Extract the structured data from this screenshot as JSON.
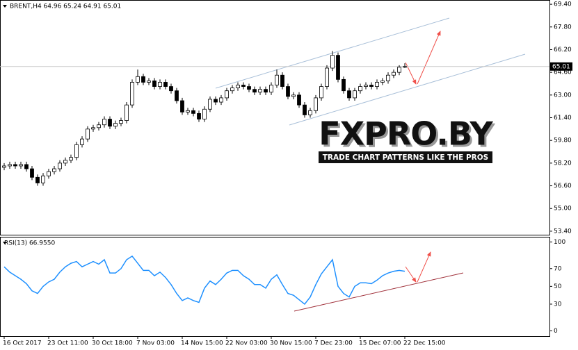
{
  "chart_data": [
    {
      "type": "candlestick",
      "title": "BRENT,H4 64.96 65.24 64.91 65.01",
      "categories": [
        "16 Oct 2017",
        null,
        null,
        null,
        null,
        null,
        null,
        null,
        "23 Oct 11:00",
        null,
        null,
        null,
        null,
        null,
        null,
        null,
        "30 Oct 18:00",
        null,
        null,
        null,
        null,
        null,
        null,
        null,
        "7 Nov 03:00",
        null,
        null,
        null,
        null,
        null,
        null,
        null,
        "14 Nov 15:00",
        null,
        null,
        null,
        null,
        null,
        null,
        null,
        "22 Nov 03:00",
        null,
        null,
        null,
        null,
        null,
        null,
        null,
        "30 Nov 15:00",
        null,
        null,
        null,
        null,
        null,
        null,
        null,
        "7 Dec 23:00",
        null,
        null,
        null,
        null,
        null,
        null,
        null,
        "15 Dec 07:00",
        null,
        null,
        null,
        null,
        null,
        null,
        null,
        "22 Dec 15:00"
      ],
      "open": [
        57.9,
        58.0,
        58.1,
        58.0,
        58.1,
        57.8,
        57.2,
        56.8,
        57.3,
        57.6,
        57.8,
        58.2,
        58.4,
        58.6,
        59.5,
        59.9,
        60.6,
        60.7,
        60.9,
        61.3,
        60.8,
        61.0,
        61.2,
        62.3,
        63.9,
        64.3,
        63.9,
        64.0,
        63.6,
        63.9,
        63.6,
        63.3,
        62.6,
        61.8,
        61.9,
        61.7,
        61.3,
        62.0,
        62.7,
        62.5,
        62.8,
        63.3,
        63.5,
        63.7,
        63.6,
        63.4,
        63.2,
        63.4,
        63.2,
        63.7,
        64.4,
        63.6,
        62.9,
        63.0,
        62.3,
        61.6,
        61.9,
        62.8,
        63.6,
        64.9,
        65.8,
        64.1,
        63.3,
        62.8,
        63.3,
        63.6,
        63.7,
        63.6,
        63.9,
        64.0,
        64.4,
        64.6,
        64.96
      ],
      "high": [
        58.2,
        58.3,
        58.3,
        58.3,
        58.3,
        58.0,
        57.4,
        57.5,
        57.8,
        58.0,
        58.4,
        58.6,
        58.8,
        59.7,
        60.1,
        60.8,
        60.9,
        61.1,
        61.5,
        61.5,
        61.2,
        61.4,
        62.5,
        64.1,
        64.8,
        64.5,
        64.2,
        64.2,
        64.1,
        64.1,
        63.8,
        63.5,
        62.8,
        62.1,
        62.1,
        61.9,
        62.2,
        62.9,
        62.9,
        63.0,
        63.5,
        63.7,
        63.9,
        63.9,
        63.8,
        63.6,
        63.6,
        63.6,
        63.9,
        64.8,
        64.6,
        63.8,
        63.2,
        63.2,
        62.5,
        62.1,
        63.0,
        63.8,
        65.1,
        66.1,
        66.0,
        64.3,
        63.5,
        63.5,
        63.8,
        63.9,
        63.9,
        64.1,
        64.2,
        64.6,
        64.8,
        65.1,
        65.24
      ],
      "low": [
        57.7,
        57.8,
        57.8,
        57.8,
        57.6,
        57.0,
        56.6,
        56.6,
        57.1,
        57.4,
        57.6,
        58.0,
        58.2,
        58.4,
        59.3,
        59.7,
        60.4,
        60.5,
        60.7,
        60.6,
        60.6,
        60.8,
        61.0,
        62.1,
        63.7,
        63.7,
        63.7,
        63.4,
        63.4,
        63.4,
        63.1,
        62.4,
        61.6,
        61.6,
        61.5,
        61.1,
        61.1,
        61.8,
        62.3,
        62.3,
        62.6,
        63.1,
        63.3,
        63.4,
        63.2,
        63.0,
        63.0,
        63.0,
        63.0,
        63.5,
        63.4,
        62.7,
        62.7,
        62.1,
        61.4,
        61.4,
        61.7,
        62.6,
        63.4,
        64.7,
        63.9,
        63.1,
        62.6,
        62.6,
        63.1,
        63.4,
        63.4,
        63.4,
        63.7,
        63.8,
        64.2,
        64.4,
        64.91
      ],
      "close": [
        58.0,
        58.1,
        58.0,
        58.1,
        57.8,
        57.2,
        56.8,
        57.3,
        57.6,
        57.8,
        58.2,
        58.4,
        58.6,
        59.5,
        59.9,
        60.6,
        60.7,
        60.9,
        61.3,
        60.8,
        61.0,
        61.2,
        62.3,
        63.9,
        64.3,
        63.9,
        64.0,
        63.6,
        63.9,
        63.6,
        63.3,
        62.6,
        61.8,
        61.9,
        61.7,
        61.3,
        62.0,
        62.7,
        62.5,
        62.8,
        63.3,
        63.5,
        63.7,
        63.6,
        63.4,
        63.2,
        63.4,
        63.2,
        63.7,
        64.4,
        63.6,
        62.9,
        63.0,
        62.3,
        61.6,
        61.9,
        62.8,
        63.6,
        64.9,
        65.8,
        64.1,
        63.3,
        62.8,
        63.3,
        63.6,
        63.7,
        63.6,
        63.9,
        64.0,
        64.4,
        64.6,
        64.96,
        65.01
      ],
      "up_color": "#ffffff",
      "down_color": "#000000",
      "wick_color": "#000000",
      "ylim": [
        53.2,
        69.65
      ],
      "yticks": [
        {
          "value": 69.4,
          "label": "69.40"
        },
        {
          "value": 67.8,
          "label": "67.80"
        },
        {
          "value": 66.2,
          "label": "66.20"
        },
        {
          "value": 64.6,
          "label": "64.60"
        },
        {
          "value": 63.0,
          "label": "63.00"
        },
        {
          "value": 61.4,
          "label": "61.40"
        },
        {
          "value": 59.8,
          "label": "59.80"
        },
        {
          "value": 58.2,
          "label": "58.20"
        },
        {
          "value": 56.6,
          "label": "56.60"
        },
        {
          "value": 55.0,
          "label": "55.00"
        },
        {
          "value": 53.4,
          "label": "53.40"
        }
      ]
    },
    {
      "type": "line",
      "title": "RSI(13) 66.9550",
      "color": "#1e90ff",
      "values": [
        72,
        66,
        62,
        58,
        53,
        45,
        42,
        50,
        55,
        58,
        66,
        72,
        76,
        78,
        72,
        75,
        78,
        75,
        80,
        65,
        65,
        70,
        80,
        84,
        76,
        68,
        68,
        62,
        66,
        60,
        52,
        42,
        34,
        37,
        34,
        32,
        48,
        56,
        52,
        58,
        65,
        68,
        68,
        62,
        58,
        52,
        52,
        48,
        58,
        63,
        52,
        42,
        40,
        35,
        30,
        38,
        52,
        64,
        72,
        80,
        50,
        42,
        38,
        50,
        54,
        54,
        53,
        57,
        62,
        65,
        67,
        68,
        66.955
      ],
      "ylim": [
        -6,
        105
      ],
      "yticks": [
        100,
        70,
        50,
        30,
        0
      ]
    }
  ],
  "watermark": {
    "logo": "FXPRO.BY",
    "tagline": "TRADE CHART PATTERNS LIKE THE PROS"
  }
}
